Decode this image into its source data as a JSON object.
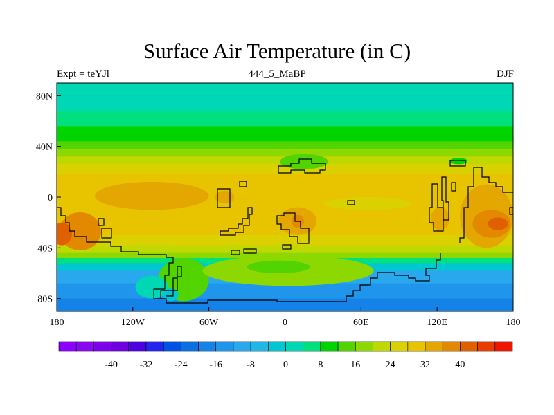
{
  "title": "Surface Air Temperature (in C)",
  "subtitle_left": "Expt = teYJl",
  "subtitle_center": "444_5_MaBP",
  "subtitle_right": "DJF",
  "map": {
    "type": "contour_map",
    "projection": "cylindrical equidistant",
    "lon_range": [
      -180,
      180
    ],
    "lat_range": [
      -90,
      90
    ],
    "x_ticks": [
      {
        "value": -180,
        "label": "180"
      },
      {
        "value": -120,
        "label": "120W"
      },
      {
        "value": -60,
        "label": "60W"
      },
      {
        "value": 0,
        "label": "0"
      },
      {
        "value": 60,
        "label": "60E"
      },
      {
        "value": 120,
        "label": "120E"
      },
      {
        "value": 180,
        "label": "180"
      }
    ],
    "y_ticks": [
      {
        "value": 80,
        "label": "80N"
      },
      {
        "value": 40,
        "label": "40N"
      },
      {
        "value": 0,
        "label": "0"
      },
      {
        "value": -40,
        "label": "40S"
      },
      {
        "value": -80,
        "label": "80S"
      }
    ],
    "zonal_bands": [
      {
        "lat_max": 90,
        "lat_min": 68,
        "value": 2
      },
      {
        "lat_max": 68,
        "lat_min": 62,
        "value": 4
      },
      {
        "lat_max": 62,
        "lat_min": 56,
        "value": 6
      },
      {
        "lat_max": 56,
        "lat_min": 50,
        "value": 8
      },
      {
        "lat_max": 50,
        "lat_min": 44,
        "value": 10
      },
      {
        "lat_max": 44,
        "lat_min": 38,
        "value": 14
      },
      {
        "lat_max": 38,
        "lat_min": 32,
        "value": 18
      },
      {
        "lat_max": 32,
        "lat_min": 26,
        "value": 20
      },
      {
        "lat_max": 26,
        "lat_min": 18,
        "value": 24
      },
      {
        "lat_max": 18,
        "lat_min": -30,
        "value": 28
      },
      {
        "lat_max": -30,
        "lat_min": -38,
        "value": 24
      },
      {
        "lat_max": -38,
        "lat_min": -44,
        "value": 20
      },
      {
        "lat_max": -44,
        "lat_min": -48,
        "value": 16
      },
      {
        "lat_max": -48,
        "lat_min": -52,
        "value": 4
      },
      {
        "lat_max": -52,
        "lat_min": -58,
        "value": -2
      },
      {
        "lat_max": -58,
        "lat_min": -68,
        "value": -10
      },
      {
        "lat_max": -68,
        "lat_min": -80,
        "value": -14
      },
      {
        "lat_max": -80,
        "lat_min": -90,
        "value": -18
      }
    ],
    "warm_regions": [
      {
        "lon": [
          -178,
          -145
        ],
        "lat": [
          -12,
          -42
        ],
        "value": 36
      },
      {
        "lon": [
          -184,
          -168
        ],
        "lat": [
          -20,
          -38
        ],
        "value": 40
      },
      {
        "lon": [
          -55,
          -40
        ],
        "lat": [
          5,
          -5
        ],
        "value": 32
      },
      {
        "lon": [
          -5,
          25
        ],
        "lat": [
          -8,
          -30
        ],
        "value": 32
      },
      {
        "lon": [
          5,
          15
        ],
        "lat": [
          -14,
          -24
        ],
        "value": 36
      },
      {
        "lon": [
          115,
          130
        ],
        "lat": [
          -8,
          -26
        ],
        "value": 32
      },
      {
        "lon": [
          138,
          180
        ],
        "lat": [
          10,
          -40
        ],
        "value": 32
      },
      {
        "lon": [
          148,
          178
        ],
        "lat": [
          -10,
          -32
        ],
        "value": 36
      },
      {
        "lon": [
          160,
          176
        ],
        "lat": [
          -16,
          -26
        ],
        "value": 40
      },
      {
        "lon": [
          -150,
          -60
        ],
        "lat": [
          12,
          -10
        ],
        "value": 32
      },
      {
        "lon": [
          30,
          100
        ],
        "lat": [
          0,
          -10
        ],
        "value": 24
      }
    ],
    "land_patches": [
      {
        "lon": [
          -100,
          -60
        ],
        "lat": [
          -48,
          -82
        ],
        "value": 14
      },
      {
        "lon": [
          -65,
          70
        ],
        "lat": [
          -46,
          -70
        ],
        "value": 18
      },
      {
        "lon": [
          -30,
          20
        ],
        "lat": [
          -50,
          -60
        ],
        "value": 12
      },
      {
        "lon": [
          -4,
          34
        ],
        "lat": [
          34,
          22
        ],
        "value": 12
      },
      {
        "lon": [
          130,
          144
        ],
        "lat": [
          31,
          26
        ],
        "value": 10
      },
      {
        "lon": [
          -118,
          -92
        ],
        "lat": [
          -62,
          -80
        ],
        "value": 2
      },
      {
        "lon": [
          -96,
          -84
        ],
        "lat": [
          -72,
          -82
        ],
        "value": -4
      }
    ]
  },
  "colorbar": {
    "colors": [
      "#8b00ff",
      "#8a07f1",
      "#7f00ec",
      "#6f00e0",
      "#4d00e0",
      "#2424f0",
      "#0052e5",
      "#0a6fe0",
      "#1482e6",
      "#1f95eb",
      "#29a8ee",
      "#1eb7e6",
      "#00c8d2",
      "#00d7b4",
      "#00e07f",
      "#00d400",
      "#52d400",
      "#8dd800",
      "#bed800",
      "#dcd100",
      "#e8c300",
      "#e4a600",
      "#e38900",
      "#e06000",
      "#e83c00",
      "#ee1600"
    ],
    "labels": [
      {
        "index": 3,
        "text": "-40"
      },
      {
        "index": 5,
        "text": "-32"
      },
      {
        "index": 7,
        "text": "-24"
      },
      {
        "index": 9,
        "text": "-16"
      },
      {
        "index": 11,
        "text": "-8"
      },
      {
        "index": 13,
        "text": "0"
      },
      {
        "index": 15,
        "text": "8"
      },
      {
        "index": 17,
        "text": "16"
      },
      {
        "index": 19,
        "text": "24"
      },
      {
        "index": 21,
        "text": "32"
      },
      {
        "index": 23,
        "text": "40"
      }
    ],
    "min": -52,
    "step": 4
  }
}
